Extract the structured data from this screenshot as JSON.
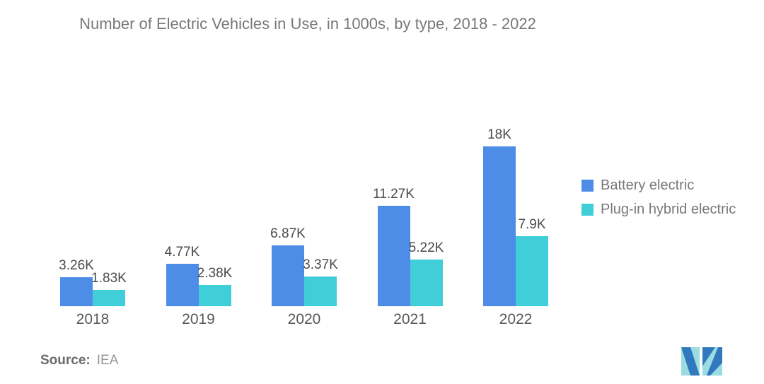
{
  "chart_data": {
    "type": "bar",
    "title": "Number of Electric Vehicles in Use, in 1000s, by type, 2018 - 2022",
    "categories": [
      "2018",
      "2019",
      "2020",
      "2021",
      "2022"
    ],
    "series": [
      {
        "name": "Battery electric",
        "key": "battery-electric",
        "color": "#4D8DE8",
        "values": [
          3.26,
          4.77,
          6.87,
          11.27,
          18
        ],
        "labels": [
          "3.26K",
          "4.77K",
          "6.87K",
          "11.27K",
          "18K"
        ]
      },
      {
        "name": "Plug-in hybrid electric",
        "key": "plug-in-hybrid-electric",
        "color": "#40CED8",
        "values": [
          1.83,
          2.38,
          3.37,
          5.22,
          7.9
        ],
        "labels": [
          "1.83K",
          "2.38K",
          "3.37K",
          "5.22K",
          "7.9K"
        ]
      }
    ],
    "xlabel": "",
    "ylabel": "",
    "ylim": [
      0,
      19.5
    ],
    "grid": false,
    "legend_position": "right",
    "value_labels": true
  },
  "footer": {
    "source_label": "Source:",
    "source_value": "IEA"
  },
  "logo": {
    "name": "mordor-intelligence-logo",
    "teal": "#9ADCE1",
    "blue": "#2F79BC"
  },
  "colors": {
    "title_text": "#77787B",
    "value_label_text": "#4B4B4D",
    "year_text": "#57585A",
    "background": "#FFFFFF"
  }
}
